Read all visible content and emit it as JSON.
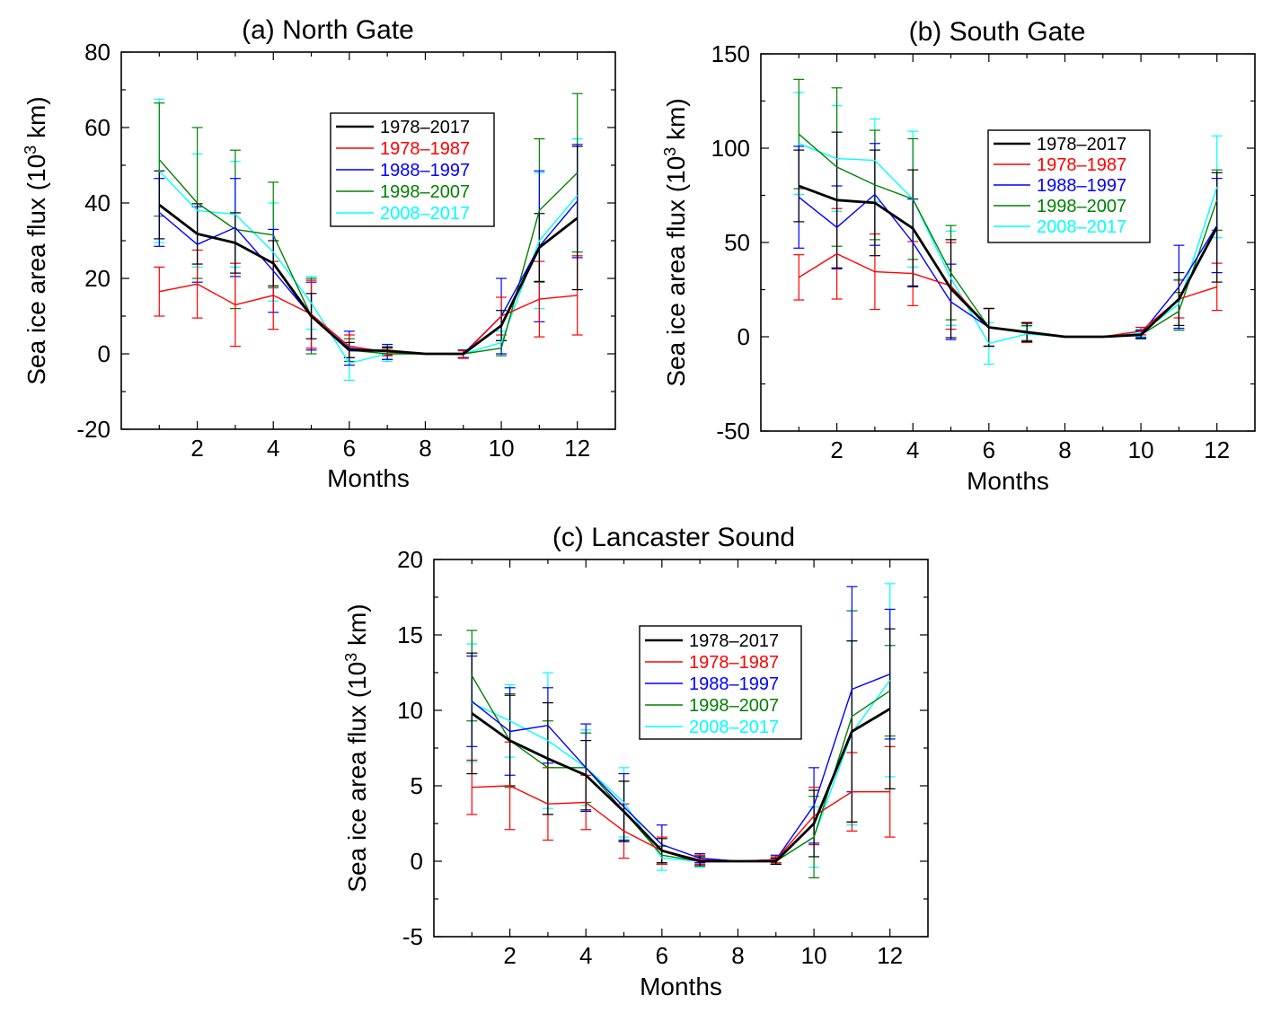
{
  "chart_data": [
    {
      "type": "line",
      "title": "(a) North Gate",
      "xlabel": "Months",
      "ylabel": "Sea ice area flux (10³ km)",
      "xlim": [
        0,
        13
      ],
      "ylim": [
        -20,
        80
      ],
      "xticks": [
        2,
        4,
        6,
        8,
        10,
        12
      ],
      "yticks": [
        -20,
        0,
        20,
        40,
        60,
        80
      ],
      "x": [
        1,
        2,
        3,
        4,
        5,
        6,
        7,
        8,
        9,
        10,
        11,
        12
      ],
      "grid": false,
      "legend": "upper center",
      "series": [
        {
          "name": "1978–2017",
          "color": "#000000",
          "values": [
            39.5,
            31.8,
            29.4,
            24.0,
            10.0,
            1.0,
            0.8,
            0.0,
            0.0,
            7.5,
            28.2,
            36.0
          ],
          "err": [
            9,
            8,
            8,
            6,
            6,
            2,
            1,
            0,
            0,
            4,
            9,
            19
          ]
        },
        {
          "name": "1978–1987",
          "color": "#ff0000",
          "values": [
            16.5,
            18.5,
            13.0,
            15.5,
            10.5,
            2.0,
            0.5,
            0.0,
            -0.2,
            10.0,
            14.5,
            15.5
          ],
          "err": [
            6.5,
            9,
            11,
            9,
            9,
            3,
            1,
            0,
            1,
            5,
            10,
            10.5
          ]
        },
        {
          "name": "1988–1997",
          "color": "#0000ff",
          "values": [
            37.5,
            29.0,
            33.5,
            22.0,
            10.0,
            1.5,
            0.5,
            0.0,
            0.0,
            10.0,
            28.5,
            40.5
          ],
          "err": [
            9,
            10,
            13,
            11,
            9,
            4.5,
            2,
            0,
            1,
            10,
            20,
            15
          ]
        },
        {
          "name": "1998–2007",
          "color": "#008000",
          "values": [
            51.5,
            40.0,
            33.0,
            31.5,
            10.0,
            1.0,
            0.0,
            0.0,
            0.0,
            1.5,
            38.0,
            48.0
          ],
          "err": [
            15,
            20,
            21,
            14,
            10,
            3,
            1.5,
            0,
            1,
            2,
            19,
            21
          ]
        },
        {
          "name": "2008–2017",
          "color": "#00ffff",
          "values": [
            48.5,
            38.0,
            37.0,
            27.0,
            13.5,
            -2.5,
            0.0,
            0.0,
            0.0,
            3.0,
            30.0,
            42.0
          ],
          "err": [
            19,
            15,
            14,
            13,
            7,
            4.5,
            2,
            0,
            1,
            3,
            18,
            15
          ]
        }
      ]
    },
    {
      "type": "line",
      "title": "(b) South Gate",
      "xlabel": "Months",
      "ylabel": "Sea ice area flux (10³ km)",
      "xlim": [
        0,
        13
      ],
      "ylim": [
        -50,
        150
      ],
      "xticks": [
        2,
        4,
        6,
        8,
        10,
        12
      ],
      "yticks": [
        -50,
        0,
        50,
        100,
        150
      ],
      "x": [
        1,
        2,
        3,
        4,
        5,
        6,
        7,
        8,
        9,
        10,
        11,
        12
      ],
      "grid": false,
      "legend": "upper right",
      "series": [
        {
          "name": "1978–2017",
          "color": "#000000",
          "values": [
            80,
            72.5,
            71,
            57.5,
            25.5,
            5.0,
            2.5,
            0.0,
            0.0,
            1.0,
            20.0,
            58.0
          ],
          "err": [
            19,
            36,
            28,
            31,
            26,
            10,
            5,
            0,
            0,
            2,
            14,
            29
          ]
        },
        {
          "name": "1978–1987",
          "color": "#ff0000",
          "values": [
            31.5,
            44.0,
            34.5,
            33.5,
            27.0,
            5.0,
            2.0,
            0.0,
            0.0,
            3.0,
            20.0,
            26.5
          ],
          "err": [
            12,
            24,
            20,
            17,
            23,
            10,
            5,
            0,
            0,
            2,
            10,
            12.5
          ]
        },
        {
          "name": "1988–1997",
          "color": "#0000ff",
          "values": [
            74.0,
            58.0,
            75.5,
            50.0,
            18.5,
            5.0,
            2.5,
            0.0,
            0.0,
            1.5,
            26.5,
            59.0
          ],
          "err": [
            27,
            22,
            27,
            23,
            20,
            10,
            5,
            0,
            0,
            2,
            22,
            25
          ]
        },
        {
          "name": "1998–2007",
          "color": "#008000",
          "values": [
            107.5,
            90.0,
            80.5,
            73.0,
            34.0,
            5.0,
            2.0,
            0.0,
            0.0,
            1.0,
            13.5,
            72.5
          ],
          "err": [
            29,
            42,
            29,
            32,
            25,
            10,
            4,
            0,
            0,
            2,
            10,
            16
          ]
        },
        {
          "name": "2008–2017",
          "color": "#00ffff",
          "values": [
            102.5,
            94.5,
            93.5,
            73.0,
            31.0,
            -3.5,
            1.5,
            0.0,
            0.0,
            2.0,
            17.5,
            79.5
          ],
          "err": [
            27,
            28,
            22,
            36,
            25,
            11,
            4,
            0,
            0,
            2,
            13,
            27
          ]
        }
      ]
    },
    {
      "type": "line",
      "title": "(c) Lancaster Sound",
      "xlabel": "Months",
      "ylabel": "Sea ice area flux (10³ km)",
      "xlim": [
        0,
        13
      ],
      "ylim": [
        -5,
        20
      ],
      "xticks": [
        2,
        4,
        6,
        8,
        10,
        12
      ],
      "yticks": [
        -5,
        0,
        5,
        10,
        15,
        20
      ],
      "x": [
        1,
        2,
        3,
        4,
        5,
        6,
        7,
        8,
        9,
        10,
        11,
        12
      ],
      "grid": false,
      "legend": "upper center",
      "series": [
        {
          "name": "1978–2017",
          "color": "#000000",
          "values": [
            9.8,
            8.0,
            6.8,
            5.7,
            3.3,
            0.7,
            0.0,
            0.0,
            0.0,
            2.5,
            8.6,
            10.1
          ],
          "err": [
            4,
            3,
            3.7,
            2.3,
            2.0,
            0.8,
            0.3,
            0,
            0.2,
            2.2,
            6,
            5.3
          ]
        },
        {
          "name": "1978–1987",
          "color": "#ff0000",
          "values": [
            4.9,
            5.0,
            3.8,
            3.9,
            2.0,
            0.7,
            0.1,
            0.0,
            0.1,
            3.0,
            4.6,
            4.6
          ],
          "err": [
            1.8,
            2.9,
            2.4,
            1.8,
            1.8,
            0.9,
            0.3,
            0,
            0.2,
            1.9,
            2.6,
            3.0
          ]
        },
        {
          "name": "1988–1997",
          "color": "#0000ff",
          "values": [
            10.6,
            8.6,
            9.0,
            6.2,
            3.6,
            1.1,
            0.2,
            0.0,
            0.1,
            3.7,
            11.4,
            12.4
          ],
          "err": [
            3,
            2.9,
            2.5,
            2.9,
            2.2,
            1.3,
            0.3,
            0,
            0.3,
            2.5,
            6.8,
            4.3
          ]
        },
        {
          "name": "1998–2007",
          "color": "#008000",
          "values": [
            12.3,
            8.0,
            6.2,
            6.2,
            3.3,
            0.4,
            0.0,
            0.0,
            0.0,
            1.6,
            9.6,
            11.3
          ],
          "err": [
            3,
            3.1,
            3.1,
            2.3,
            2.0,
            0.6,
            0.3,
            0,
            0.2,
            2.7,
            7,
            3.0
          ]
        },
        {
          "name": "2008–2017",
          "color": "#00ffff",
          "values": [
            10.5,
            9.3,
            8.0,
            6.2,
            3.9,
            0.2,
            0.0,
            0.0,
            0.0,
            1.6,
            8.5,
            12.0
          ],
          "err": [
            3.9,
            2.4,
            4.5,
            2.5,
            2.3,
            0.8,
            0.4,
            0,
            0.2,
            2.0,
            6.1,
            6.4
          ]
        }
      ]
    }
  ]
}
